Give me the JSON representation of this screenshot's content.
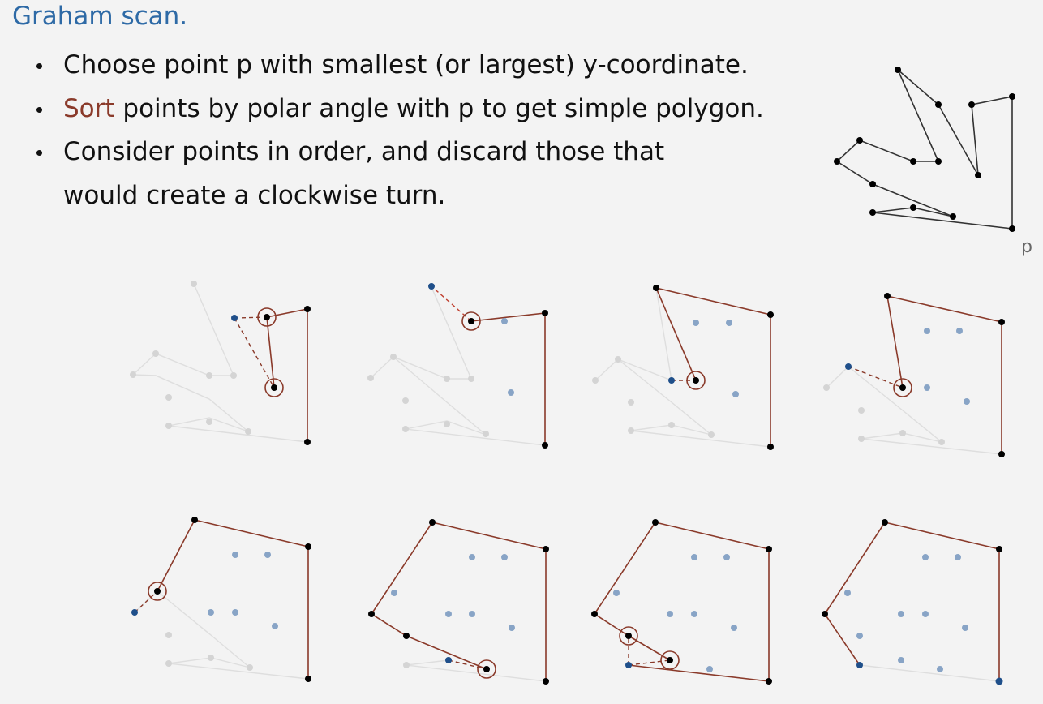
{
  "title": "Graham scan.",
  "bullets": {
    "b1": "Choose point p with smallest (or largest) y-coordinate.",
    "b2_highlight": "Sort",
    "b2_rest": " points by polar angle with p to get simple polygon.",
    "b3_line1": "Consider points in order, and discard those that",
    "b3_line2": "would create a clockwise turn."
  },
  "figure": {
    "pivot_label": "p"
  },
  "colors": {
    "title": "#2e6aa6",
    "hull_edge": "#8a3a2a",
    "polygon_edge": "#333333",
    "faded": "#d6d6d6",
    "candidate": "#1f4f8a",
    "interior": "#88a4c6",
    "discard_line": "#c04030"
  }
}
